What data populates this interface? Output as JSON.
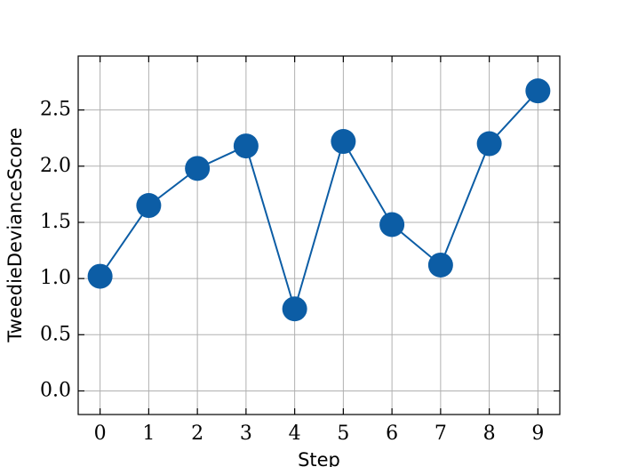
{
  "chart_data": {
    "type": "line",
    "x_label": "Step",
    "y_label": "TweedieDevianceScore",
    "x": [
      0,
      1,
      2,
      3,
      4,
      5,
      6,
      7,
      8,
      9
    ],
    "values": [
      1.02,
      1.65,
      1.98,
      2.18,
      0.73,
      2.22,
      1.48,
      1.12,
      2.2,
      2.67
    ],
    "color": "#0c5da5",
    "xlim": [
      -0.45,
      9.45
    ],
    "ylim": [
      -0.21,
      2.98
    ],
    "xticks": [
      0,
      1,
      2,
      3,
      4,
      5,
      6,
      7,
      8,
      9
    ],
    "yticks": [
      {
        "value": 0,
        "label": "0.0"
      },
      {
        "value": 0.5,
        "label": "0.5"
      },
      {
        "value": 1,
        "label": "1.0"
      },
      {
        "value": 1.5,
        "label": "1.5"
      },
      {
        "value": 2,
        "label": "2.0"
      },
      {
        "value": 2.5,
        "label": "2.5"
      }
    ],
    "grid": true
  }
}
